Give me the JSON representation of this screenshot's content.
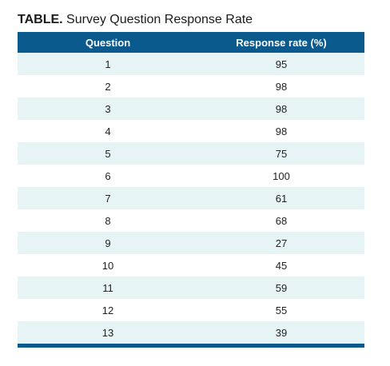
{
  "header": {
    "label": "TABLE.",
    "title": "Survey Question Response Rate"
  },
  "table": {
    "columns": [
      "Question",
      "Response rate (%)"
    ],
    "rows": [
      [
        1,
        95
      ],
      [
        2,
        98
      ],
      [
        3,
        98
      ],
      [
        4,
        98
      ],
      [
        5,
        75
      ],
      [
        6,
        100
      ],
      [
        7,
        61
      ],
      [
        8,
        68
      ],
      [
        9,
        27
      ],
      [
        10,
        45
      ],
      [
        11,
        59
      ],
      [
        12,
        55
      ],
      [
        13,
        39
      ]
    ]
  }
}
